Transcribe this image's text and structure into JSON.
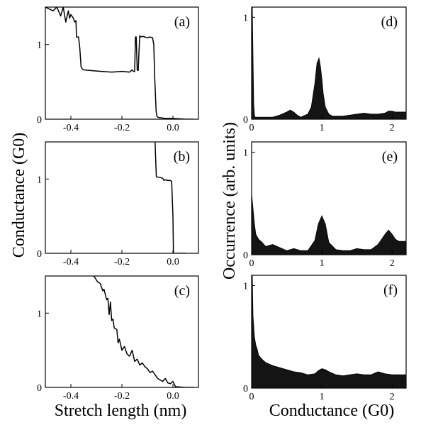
{
  "figure": {
    "ylabel_left": "Conductance (G0)",
    "xlabel_left": "Stretch length (nm)",
    "ylabel_right": "Occurrence (arb. units)",
    "xlabel_right": "Conductance (G0)"
  },
  "chart_data": [
    {
      "id": "a",
      "label": "(a)",
      "type": "line",
      "xlim": [
        -0.5,
        0.1
      ],
      "ylim": [
        0,
        1.5
      ],
      "xticks": [
        -0.4,
        -0.2,
        0.0
      ],
      "xtick_labels": [
        "-0.4",
        "-0.2",
        "0.0"
      ],
      "yticks": [
        0,
        1
      ],
      "ytick_labels": [
        "0",
        "1"
      ],
      "series": [
        {
          "x": [
            -0.5,
            -0.47,
            -0.455,
            -0.44,
            -0.43,
            -0.42,
            -0.41,
            -0.405,
            -0.4,
            -0.39,
            -0.385,
            -0.38,
            -0.378,
            -0.37,
            -0.365,
            -0.36,
            -0.355,
            -0.35,
            -0.32,
            -0.28,
            -0.24,
            -0.2,
            -0.17,
            -0.16,
            -0.155,
            -0.15,
            -0.147,
            -0.144,
            -0.14,
            -0.136,
            -0.133,
            -0.13,
            -0.128,
            -0.125,
            -0.12,
            -0.11,
            -0.1,
            -0.09,
            -0.08,
            -0.075,
            -0.072,
            -0.069,
            -0.066,
            -0.063,
            -0.06,
            -0.055,
            -0.05,
            -0.03,
            0.0,
            0.05,
            0.08
          ],
          "y": [
            1.5,
            1.45,
            1.5,
            1.38,
            1.5,
            1.3,
            1.45,
            1.35,
            1.4,
            1.35,
            1.3,
            1.32,
            1.1,
            1.1,
            0.95,
            0.7,
            0.67,
            0.66,
            0.65,
            0.64,
            0.63,
            0.64,
            0.63,
            0.66,
            0.64,
            0.64,
            1.1,
            1.1,
            0.66,
            0.65,
            0.9,
            1.12,
            1.1,
            1.1,
            1.11,
            1.1,
            1.09,
            1.1,
            1.09,
            1.0,
            0.6,
            0.35,
            0.12,
            0.04,
            0.03,
            0.02,
            0.02,
            0.01,
            0.01,
            0.0,
            0.0
          ]
        }
      ]
    },
    {
      "id": "b",
      "label": "(b)",
      "type": "line",
      "xlim": [
        -0.5,
        0.1
      ],
      "ylim": [
        0,
        1.5
      ],
      "xticks": [
        -0.4,
        -0.2,
        0.0
      ],
      "xtick_labels": [
        "-0.4",
        "-0.2",
        "0.0"
      ],
      "yticks": [
        0,
        1
      ],
      "ytick_labels": [
        "0",
        "1"
      ],
      "series": [
        {
          "x": [
            -0.07,
            -0.068,
            -0.065,
            -0.05,
            -0.04,
            -0.035,
            -0.03,
            -0.02,
            -0.01,
            -0.005,
            0.0,
            0.002,
            0.01,
            0.05
          ],
          "y": [
            1.5,
            1.3,
            1.03,
            1.02,
            1.01,
            0.98,
            0.99,
            0.98,
            0.98,
            0.97,
            0.5,
            0.0,
            0.0,
            0.0
          ]
        }
      ]
    },
    {
      "id": "c",
      "label": "(c)",
      "type": "line",
      "xlim": [
        -0.5,
        0.1
      ],
      "ylim": [
        0,
        1.5
      ],
      "xticks": [
        -0.4,
        -0.2,
        0.0
      ],
      "xtick_labels": [
        "-0.4",
        "-0.2",
        "0.0"
      ],
      "yticks": [
        0,
        1
      ],
      "ytick_labels": [
        "0",
        "1"
      ],
      "series": [
        {
          "x": [
            -0.31,
            -0.295,
            -0.285,
            -0.275,
            -0.27,
            -0.26,
            -0.255,
            -0.25,
            -0.245,
            -0.24,
            -0.235,
            -0.23,
            -0.22,
            -0.215,
            -0.21,
            -0.2,
            -0.19,
            -0.18,
            -0.17,
            -0.16,
            -0.15,
            -0.14,
            -0.13,
            -0.12,
            -0.11,
            -0.1,
            -0.09,
            -0.08,
            -0.07,
            -0.06,
            -0.05,
            -0.04,
            -0.03,
            -0.02,
            -0.01,
            0.0,
            0.01,
            0.05,
            0.08
          ],
          "y": [
            1.5,
            1.42,
            1.4,
            1.3,
            1.32,
            1.18,
            1.2,
            0.98,
            1.15,
            0.9,
            0.92,
            0.8,
            0.78,
            0.6,
            0.65,
            0.5,
            0.55,
            0.45,
            0.42,
            0.5,
            0.35,
            0.38,
            0.3,
            0.33,
            0.28,
            0.25,
            0.2,
            0.22,
            0.17,
            0.12,
            0.1,
            0.08,
            0.12,
            0.06,
            0.05,
            0.08,
            0.01,
            0.0,
            0.0
          ]
        }
      ]
    },
    {
      "id": "d",
      "label": "(d)",
      "type": "area",
      "xlim": [
        0,
        2.2
      ],
      "ylim": [
        0,
        1.1
      ],
      "xticks": [
        0,
        1,
        2
      ],
      "xtick_labels": [
        "0",
        "1",
        "2"
      ],
      "yticks": [
        0,
        1
      ],
      "ytick_labels": [
        "0",
        "1"
      ],
      "series": [
        {
          "x": [
            0.0,
            0.01,
            0.02,
            0.03,
            0.04,
            0.05,
            0.1,
            0.2,
            0.3,
            0.4,
            0.5,
            0.55,
            0.6,
            0.65,
            0.7,
            0.8,
            0.85,
            0.9,
            0.93,
            0.96,
            0.98,
            1.0,
            1.02,
            1.05,
            1.1,
            1.15,
            1.2,
            1.3,
            1.4,
            1.5,
            1.6,
            1.7,
            1.8,
            1.9,
            1.95,
            2.0,
            2.05,
            2.1,
            2.2
          ],
          "y": [
            1.1,
            1.1,
            0.6,
            0.15,
            0.04,
            0.02,
            0.02,
            0.02,
            0.02,
            0.04,
            0.07,
            0.09,
            0.07,
            0.04,
            0.02,
            0.05,
            0.12,
            0.35,
            0.55,
            0.6,
            0.52,
            0.4,
            0.25,
            0.12,
            0.05,
            0.03,
            0.03,
            0.03,
            0.04,
            0.05,
            0.06,
            0.05,
            0.05,
            0.06,
            0.08,
            0.08,
            0.07,
            0.07,
            0.07
          ]
        }
      ]
    },
    {
      "id": "e",
      "label": "(e)",
      "type": "area",
      "xlim": [
        0,
        2.2
      ],
      "ylim": [
        0,
        1.1
      ],
      "xticks": [
        0,
        1,
        2
      ],
      "xtick_labels": [
        "0",
        "1",
        "2"
      ],
      "yticks": [
        0,
        1
      ],
      "ytick_labels": [
        "0",
        "1"
      ],
      "series": [
        {
          "x": [
            0.0,
            0.02,
            0.04,
            0.06,
            0.1,
            0.15,
            0.2,
            0.3,
            0.4,
            0.5,
            0.6,
            0.7,
            0.8,
            0.9,
            0.95,
            1.0,
            1.05,
            1.1,
            1.2,
            1.3,
            1.4,
            1.5,
            1.6,
            1.7,
            1.8,
            1.9,
            1.95,
            2.0,
            2.05,
            2.1,
            2.2
          ],
          "y": [
            0.6,
            0.45,
            0.3,
            0.2,
            0.15,
            0.12,
            0.08,
            0.1,
            0.07,
            0.04,
            0.06,
            0.04,
            0.04,
            0.14,
            0.3,
            0.38,
            0.3,
            0.12,
            0.05,
            0.04,
            0.04,
            0.06,
            0.05,
            0.05,
            0.1,
            0.2,
            0.24,
            0.2,
            0.15,
            0.13,
            0.13
          ]
        }
      ]
    },
    {
      "id": "f",
      "label": "(f)",
      "type": "area",
      "xlim": [
        0,
        2.2
      ],
      "ylim": [
        0,
        1.1
      ],
      "xticks": [
        0,
        1,
        2
      ],
      "xtick_labels": [
        "0",
        "1",
        "2"
      ],
      "yticks": [
        0,
        1
      ],
      "ytick_labels": [
        "0",
        "1"
      ],
      "series": [
        {
          "x": [
            0.0,
            0.01,
            0.02,
            0.04,
            0.06,
            0.08,
            0.1,
            0.15,
            0.2,
            0.3,
            0.4,
            0.5,
            0.6,
            0.7,
            0.8,
            0.9,
            0.95,
            1.0,
            1.05,
            1.1,
            1.2,
            1.3,
            1.4,
            1.5,
            1.6,
            1.7,
            1.8,
            1.9,
            2.0,
            2.1,
            2.2
          ],
          "y": [
            1.1,
            1.1,
            0.7,
            0.5,
            0.42,
            0.38,
            0.32,
            0.28,
            0.25,
            0.22,
            0.2,
            0.18,
            0.16,
            0.15,
            0.13,
            0.14,
            0.17,
            0.19,
            0.18,
            0.16,
            0.13,
            0.12,
            0.13,
            0.14,
            0.13,
            0.13,
            0.16,
            0.14,
            0.13,
            0.13,
            0.13
          ]
        }
      ]
    }
  ]
}
